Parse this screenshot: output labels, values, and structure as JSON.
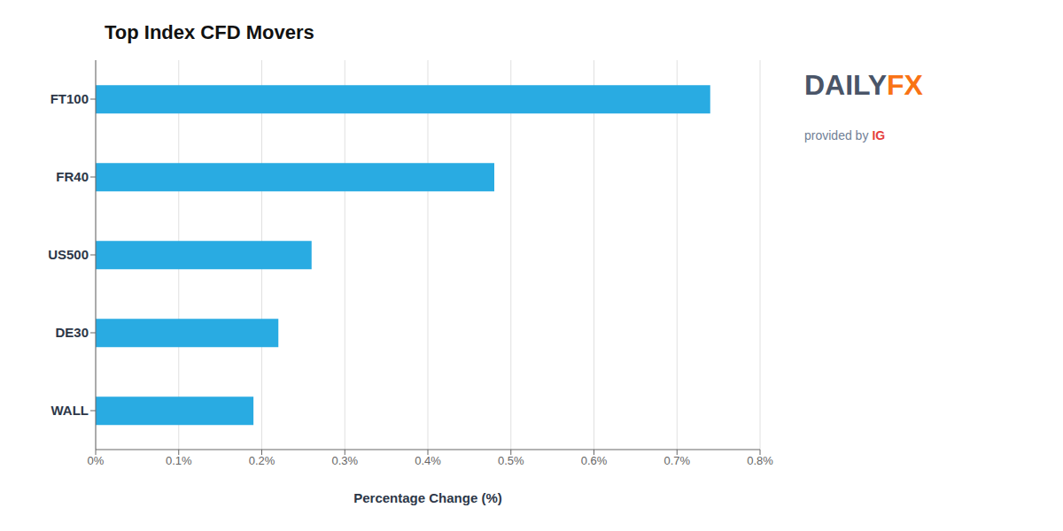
{
  "chart_data": {
    "type": "bar",
    "orientation": "horizontal",
    "title": "Top Index CFD Movers",
    "categories": [
      "WALL",
      "DE30",
      "US500",
      "FR40",
      "FT100"
    ],
    "values": [
      0.19,
      0.22,
      0.26,
      0.48,
      0.74
    ],
    "color": "#29ABE2",
    "xlabel": "Percentage Change (%)",
    "xlim": [
      0,
      0.8
    ],
    "xticks": [
      {
        "value": 0,
        "label": "0%"
      },
      {
        "value": 0.1,
        "label": "0.1%"
      },
      {
        "value": 0.2,
        "label": "0.2%"
      },
      {
        "value": 0.3,
        "label": "0.3%"
      },
      {
        "value": 0.4,
        "label": "0.4%"
      },
      {
        "value": 0.5,
        "label": "0.5%"
      },
      {
        "value": 0.6,
        "label": "0.6%"
      },
      {
        "value": 0.7,
        "label": "0.7%"
      },
      {
        "value": 0.8,
        "label": "0.8%"
      }
    ],
    "grid": true,
    "annotations": [
      {
        "text": "DAILY",
        "color": "#4a5568"
      },
      {
        "text": "FX",
        "color": "#f97316"
      },
      {
        "text": "provided by",
        "color": "#718096"
      },
      {
        "text": "IG",
        "color": "#e53e3e"
      }
    ]
  }
}
